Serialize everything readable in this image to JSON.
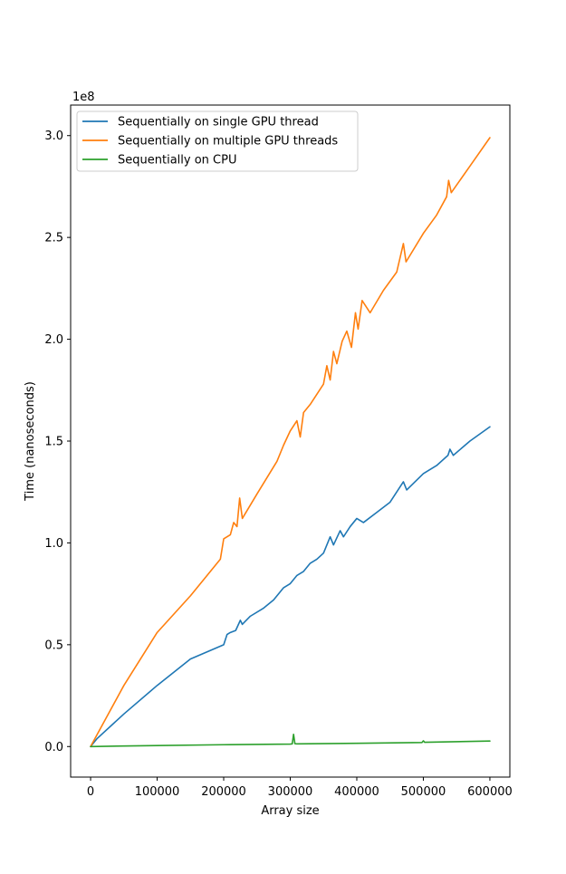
{
  "chart_data": {
    "type": "line",
    "title": "",
    "xlabel": "Array size",
    "ylabel": "Time (nanoseconds)",
    "y_offset_label": "1e8",
    "xlim": [
      -30000,
      630000
    ],
    "ylim": [
      -0.15,
      3.15
    ],
    "y_scale_note": "y values in units of 1e8 nanoseconds",
    "x_ticks": [
      0,
      100000,
      200000,
      300000,
      400000,
      500000,
      600000
    ],
    "x_tick_labels": [
      "0",
      "100000",
      "200000",
      "300000",
      "400000",
      "500000",
      "600000"
    ],
    "y_ticks": [
      0.0,
      0.5,
      1.0,
      1.5,
      2.0,
      2.5,
      3.0
    ],
    "y_tick_labels": [
      "0.0",
      "0.5",
      "1.0",
      "1.5",
      "2.0",
      "2.5",
      "3.0"
    ],
    "legend_position": "top-left",
    "series": [
      {
        "name": "Sequentially on single GPU thread",
        "color": "#1f77b4",
        "points": [
          [
            0,
            0.0
          ],
          [
            10000,
            0.04
          ],
          [
            50000,
            0.16
          ],
          [
            100000,
            0.3
          ],
          [
            150000,
            0.43
          ],
          [
            200000,
            0.5
          ],
          [
            205000,
            0.55
          ],
          [
            210000,
            0.56
          ],
          [
            218000,
            0.57
          ],
          [
            225000,
            0.62
          ],
          [
            228000,
            0.6
          ],
          [
            240000,
            0.64
          ],
          [
            260000,
            0.68
          ],
          [
            275000,
            0.72
          ],
          [
            290000,
            0.78
          ],
          [
            300000,
            0.8
          ],
          [
            310000,
            0.84
          ],
          [
            320000,
            0.86
          ],
          [
            330000,
            0.9
          ],
          [
            340000,
            0.92
          ],
          [
            350000,
            0.95
          ],
          [
            360000,
            1.03
          ],
          [
            365000,
            0.99
          ],
          [
            375000,
            1.06
          ],
          [
            380000,
            1.03
          ],
          [
            390000,
            1.08
          ],
          [
            400000,
            1.12
          ],
          [
            410000,
            1.1
          ],
          [
            430000,
            1.15
          ],
          [
            450000,
            1.2
          ],
          [
            470000,
            1.3
          ],
          [
            475000,
            1.26
          ],
          [
            500000,
            1.34
          ],
          [
            520000,
            1.38
          ],
          [
            537000,
            1.43
          ],
          [
            540000,
            1.46
          ],
          [
            545000,
            1.43
          ],
          [
            570000,
            1.5
          ],
          [
            600000,
            1.57
          ]
        ]
      },
      {
        "name": "Sequentially on multiple GPU threads",
        "color": "#ff7f0e",
        "points": [
          [
            0,
            0.0
          ],
          [
            10000,
            0.06
          ],
          [
            50000,
            0.3
          ],
          [
            100000,
            0.56
          ],
          [
            150000,
            0.74
          ],
          [
            195000,
            0.92
          ],
          [
            200000,
            1.02
          ],
          [
            210000,
            1.04
          ],
          [
            215000,
            1.1
          ],
          [
            220000,
            1.08
          ],
          [
            224000,
            1.22
          ],
          [
            228000,
            1.12
          ],
          [
            250000,
            1.24
          ],
          [
            280000,
            1.4
          ],
          [
            290000,
            1.48
          ],
          [
            300000,
            1.55
          ],
          [
            310000,
            1.6
          ],
          [
            315000,
            1.52
          ],
          [
            320000,
            1.64
          ],
          [
            330000,
            1.68
          ],
          [
            340000,
            1.73
          ],
          [
            350000,
            1.78
          ],
          [
            355000,
            1.87
          ],
          [
            360000,
            1.8
          ],
          [
            365000,
            1.94
          ],
          [
            370000,
            1.88
          ],
          [
            378000,
            1.99
          ],
          [
            385000,
            2.04
          ],
          [
            392000,
            1.96
          ],
          [
            398000,
            2.13
          ],
          [
            402000,
            2.05
          ],
          [
            408000,
            2.19
          ],
          [
            420000,
            2.13
          ],
          [
            440000,
            2.24
          ],
          [
            460000,
            2.33
          ],
          [
            470000,
            2.47
          ],
          [
            474000,
            2.38
          ],
          [
            500000,
            2.52
          ],
          [
            520000,
            2.61
          ],
          [
            535000,
            2.7
          ],
          [
            538000,
            2.78
          ],
          [
            542000,
            2.72
          ],
          [
            570000,
            2.85
          ],
          [
            600000,
            2.99
          ]
        ]
      },
      {
        "name": "Sequentially on CPU",
        "color": "#2ca02c",
        "points": [
          [
            0,
            0.0
          ],
          [
            100000,
            0.005
          ],
          [
            200000,
            0.009
          ],
          [
            300000,
            0.012
          ],
          [
            303000,
            0.013
          ],
          [
            305000,
            0.06
          ],
          [
            307000,
            0.014
          ],
          [
            310000,
            0.013
          ],
          [
            400000,
            0.016
          ],
          [
            498000,
            0.02
          ],
          [
            500000,
            0.028
          ],
          [
            502000,
            0.021
          ],
          [
            600000,
            0.027
          ]
        ]
      }
    ]
  }
}
